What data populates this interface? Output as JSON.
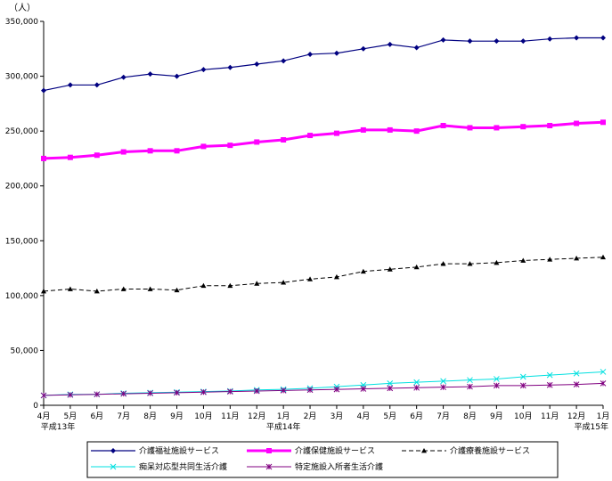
{
  "chart_data": {
    "type": "line",
    "unit_label": "（人）",
    "x_labels": [
      "4月",
      "5月",
      "6月",
      "7月",
      "8月",
      "9月",
      "10月",
      "11月",
      "12月",
      "1月",
      "2月",
      "3月",
      "4月",
      "5月",
      "6月",
      "7月",
      "8月",
      "9月",
      "10月",
      "11月",
      "12月",
      "1月"
    ],
    "era_labels": [
      {
        "index": 0,
        "text": "平成13年"
      },
      {
        "index": 9,
        "text": "平成14年"
      },
      {
        "index": 21,
        "text": "平成15年"
      }
    ],
    "ylim": [
      0,
      350000
    ],
    "y_ticks": [
      0,
      50000,
      100000,
      150000,
      200000,
      250000,
      300000,
      350000
    ],
    "y_tick_labels": [
      "0",
      "50,000",
      "100,000",
      "150,000",
      "200,000",
      "250,000",
      "300,000",
      "350,000"
    ],
    "grid": false,
    "legend_position": "bottom",
    "series": [
      {
        "name": "介護福祉施設サービス",
        "color": "#000080",
        "marker": "diamond",
        "width": 1.2,
        "values": [
          287000,
          292000,
          292000,
          299000,
          302000,
          300000,
          306000,
          308000,
          311000,
          314000,
          320000,
          321000,
          325000,
          329000,
          326000,
          333000,
          332000,
          332000,
          332000,
          334000,
          335000,
          335000
        ]
      },
      {
        "name": "介護保健施設サービス",
        "color": "#ff00ff",
        "marker": "square",
        "width": 3,
        "values": [
          225000,
          226000,
          228000,
          231000,
          232000,
          232000,
          236000,
          237000,
          240000,
          242000,
          246000,
          248000,
          251000,
          251000,
          250000,
          255000,
          253000,
          253000,
          254000,
          255000,
          257000,
          258000
        ]
      },
      {
        "name": "介護療養施設サービス",
        "color": "#000000",
        "marker": "triangle",
        "width": 1,
        "dash": "5,3",
        "values": [
          104000,
          106000,
          104000,
          106000,
          106000,
          105000,
          109000,
          109000,
          111000,
          112000,
          115000,
          117000,
          122000,
          124000,
          126000,
          129000,
          129000,
          130000,
          132000,
          133000,
          134000,
          135000
        ]
      },
      {
        "name": "痴呆対応型共同生活介護",
        "color": "#00e0e0",
        "marker": "x",
        "width": 1,
        "values": [
          9000,
          10000,
          10000,
          11000,
          11500,
          12000,
          12500,
          13000,
          14000,
          14500,
          15500,
          17000,
          18500,
          20000,
          21000,
          22000,
          23000,
          24000,
          26000,
          27500,
          29000,
          30500
        ]
      },
      {
        "name": "特定施設入所者生活介護",
        "color": "#800080",
        "marker": "star",
        "width": 1,
        "values": [
          9000,
          9500,
          10000,
          10500,
          11000,
          11500,
          12000,
          12500,
          13000,
          13500,
          14000,
          14500,
          15000,
          15500,
          16000,
          16500,
          17000,
          18000,
          18000,
          18500,
          19000,
          20000
        ]
      }
    ]
  }
}
